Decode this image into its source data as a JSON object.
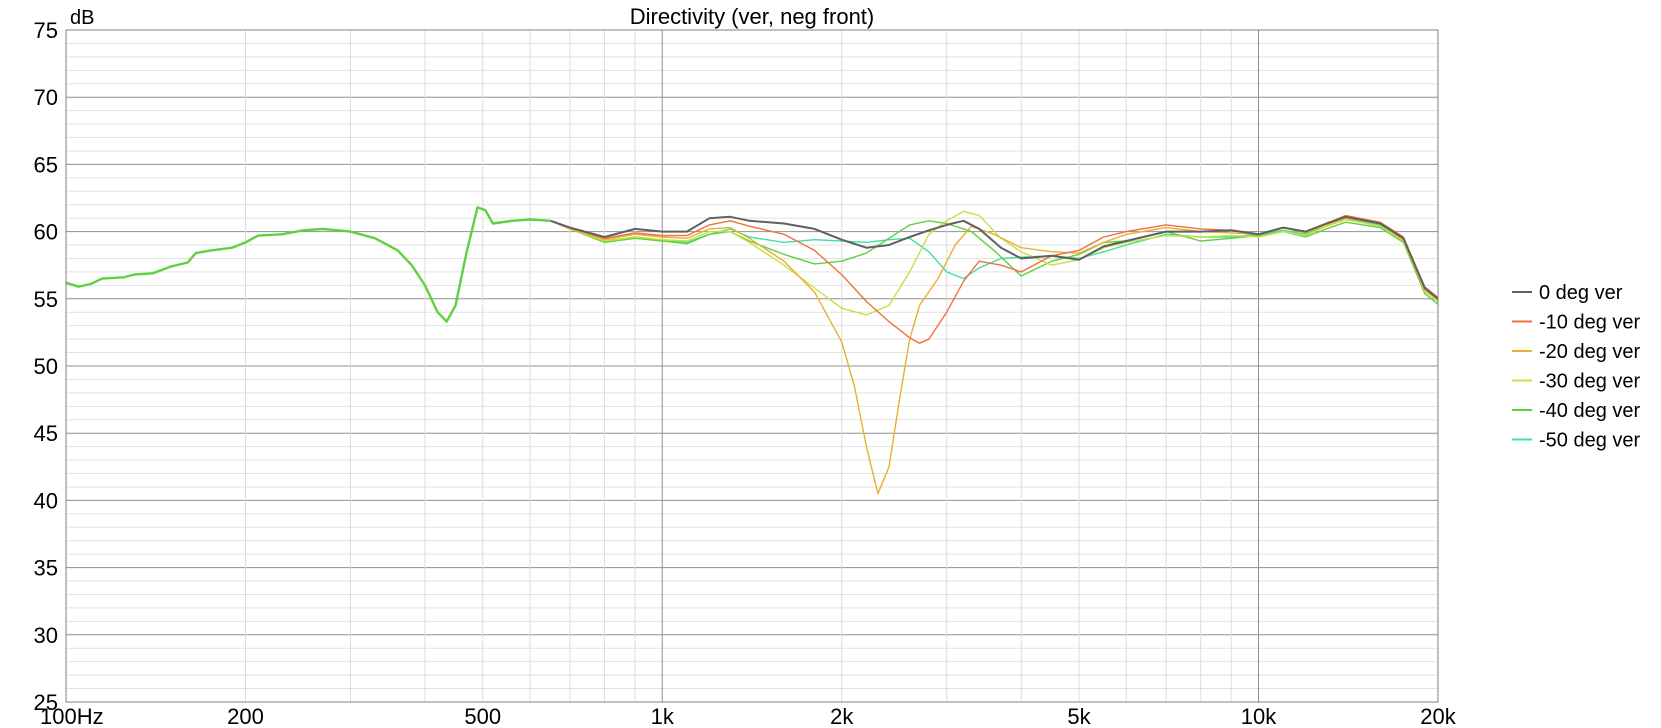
{
  "chart_data": {
    "type": "line",
    "title": "Directivity (ver, neg front)",
    "ylabel_unit": "dB",
    "xscale": "log",
    "xlim": [
      100,
      20000
    ],
    "ylim": [
      25,
      75
    ],
    "yticks": [
      {
        "value": 75,
        "label": "75"
      },
      {
        "value": 70,
        "label": "70"
      },
      {
        "value": 65,
        "label": "65"
      },
      {
        "value": 60,
        "label": "60"
      },
      {
        "value": 55,
        "label": "55"
      },
      {
        "value": 50,
        "label": "50"
      },
      {
        "value": 45,
        "label": "45"
      },
      {
        "value": 40,
        "label": "40"
      },
      {
        "value": 35,
        "label": "35"
      },
      {
        "value": 30,
        "label": "30"
      },
      {
        "value": 25,
        "label": "25"
      }
    ],
    "xticks": [
      {
        "value": 100,
        "label": "100Hz"
      },
      {
        "value": 200,
        "label": "200"
      },
      {
        "value": 500,
        "label": "500"
      },
      {
        "value": 1000,
        "label": "1k"
      },
      {
        "value": 2000,
        "label": "2k"
      },
      {
        "value": 5000,
        "label": "5k"
      },
      {
        "value": 10000,
        "label": "10k"
      },
      {
        "value": 20000,
        "label": "20k"
      }
    ],
    "grid": true,
    "legend_position": "right",
    "series": [
      {
        "name": "0 deg ver",
        "color": "#606060",
        "points": [
          [
            650,
            60.8
          ],
          [
            700,
            60.3
          ],
          [
            800,
            59.6
          ],
          [
            900,
            60.2
          ],
          [
            1000,
            60.0
          ],
          [
            1100,
            60.0
          ],
          [
            1200,
            61.0
          ],
          [
            1300,
            61.1
          ],
          [
            1400,
            60.8
          ],
          [
            1600,
            60.6
          ],
          [
            1800,
            60.2
          ],
          [
            2000,
            59.4
          ],
          [
            2200,
            58.8
          ],
          [
            2400,
            59.0
          ],
          [
            2600,
            59.6
          ],
          [
            2800,
            60.1
          ],
          [
            3000,
            60.5
          ],
          [
            3200,
            60.8
          ],
          [
            3400,
            60.2
          ],
          [
            3700,
            58.8
          ],
          [
            4000,
            58.0
          ],
          [
            4500,
            58.2
          ],
          [
            5000,
            57.9
          ],
          [
            5500,
            58.9
          ],
          [
            6000,
            59.3
          ],
          [
            7000,
            60.0
          ],
          [
            8000,
            60.0
          ],
          [
            9000,
            60.1
          ],
          [
            10000,
            59.8
          ],
          [
            11000,
            60.3
          ],
          [
            12000,
            60.0
          ],
          [
            13000,
            60.6
          ],
          [
            14000,
            61.1
          ],
          [
            16000,
            60.6
          ],
          [
            17500,
            59.5
          ],
          [
            19000,
            55.8
          ],
          [
            20000,
            55.0
          ]
        ]
      },
      {
        "name": "-10 deg ver",
        "color": "#f07040",
        "points": [
          [
            650,
            60.8
          ],
          [
            700,
            60.3
          ],
          [
            800,
            59.5
          ],
          [
            900,
            59.9
          ],
          [
            1000,
            59.7
          ],
          [
            1100,
            59.7
          ],
          [
            1200,
            60.5
          ],
          [
            1300,
            60.8
          ],
          [
            1400,
            60.4
          ],
          [
            1600,
            59.8
          ],
          [
            1800,
            58.6
          ],
          [
            2000,
            56.8
          ],
          [
            2200,
            54.8
          ],
          [
            2400,
            53.3
          ],
          [
            2600,
            52.1
          ],
          [
            2700,
            51.7
          ],
          [
            2800,
            52.0
          ],
          [
            3000,
            54.0
          ],
          [
            3200,
            56.3
          ],
          [
            3400,
            57.8
          ],
          [
            3700,
            57.5
          ],
          [
            4000,
            57.0
          ],
          [
            4500,
            58.2
          ],
          [
            5000,
            58.6
          ],
          [
            5500,
            59.6
          ],
          [
            6000,
            60.0
          ],
          [
            7000,
            60.5
          ],
          [
            8000,
            60.2
          ],
          [
            9000,
            60.1
          ],
          [
            10000,
            59.8
          ],
          [
            11000,
            60.3
          ],
          [
            12000,
            60.0
          ],
          [
            13000,
            60.6
          ],
          [
            14000,
            61.2
          ],
          [
            16000,
            60.7
          ],
          [
            17500,
            59.6
          ],
          [
            19000,
            55.9
          ],
          [
            20000,
            55.1
          ]
        ]
      },
      {
        "name": "-20 deg ver",
        "color": "#e8b030",
        "points": [
          [
            650,
            60.8
          ],
          [
            700,
            60.2
          ],
          [
            800,
            59.4
          ],
          [
            900,
            59.8
          ],
          [
            1000,
            59.6
          ],
          [
            1100,
            59.5
          ],
          [
            1200,
            60.2
          ],
          [
            1300,
            60.3
          ],
          [
            1400,
            59.5
          ],
          [
            1600,
            57.8
          ],
          [
            1800,
            55.5
          ],
          [
            2000,
            51.8
          ],
          [
            2100,
            48.5
          ],
          [
            2200,
            44.0
          ],
          [
            2300,
            40.5
          ],
          [
            2400,
            42.5
          ],
          [
            2500,
            47.5
          ],
          [
            2600,
            52.0
          ],
          [
            2700,
            54.5
          ],
          [
            2900,
            56.5
          ],
          [
            3100,
            59.0
          ],
          [
            3300,
            60.4
          ],
          [
            3600,
            59.8
          ],
          [
            4000,
            58.8
          ],
          [
            4500,
            58.5
          ],
          [
            5000,
            58.4
          ],
          [
            5500,
            59.2
          ],
          [
            6000,
            59.8
          ],
          [
            7000,
            60.3
          ],
          [
            8000,
            60.0
          ],
          [
            9000,
            59.9
          ],
          [
            10000,
            59.8
          ],
          [
            11000,
            60.3
          ],
          [
            12000,
            59.9
          ],
          [
            13000,
            60.5
          ],
          [
            14000,
            61.0
          ],
          [
            16000,
            60.6
          ],
          [
            17500,
            59.4
          ],
          [
            19000,
            55.7
          ],
          [
            20000,
            54.9
          ]
        ]
      },
      {
        "name": "-30 deg ver",
        "color": "#c8e040",
        "points": [
          [
            650,
            60.8
          ],
          [
            700,
            60.2
          ],
          [
            800,
            59.3
          ],
          [
            900,
            59.6
          ],
          [
            1000,
            59.4
          ],
          [
            1100,
            59.3
          ],
          [
            1200,
            60.0
          ],
          [
            1300,
            60.0
          ],
          [
            1400,
            59.2
          ],
          [
            1600,
            57.5
          ],
          [
            1800,
            55.8
          ],
          [
            2000,
            54.3
          ],
          [
            2200,
            53.8
          ],
          [
            2400,
            54.5
          ],
          [
            2600,
            57.0
          ],
          [
            2800,
            59.8
          ],
          [
            3000,
            60.8
          ],
          [
            3200,
            61.5
          ],
          [
            3400,
            61.2
          ],
          [
            3700,
            59.5
          ],
          [
            4000,
            58.5
          ],
          [
            4500,
            57.5
          ],
          [
            5000,
            57.9
          ],
          [
            5500,
            58.8
          ],
          [
            6000,
            59.2
          ],
          [
            7000,
            59.7
          ],
          [
            8000,
            59.6
          ],
          [
            9000,
            59.7
          ],
          [
            10000,
            59.6
          ],
          [
            11000,
            60.0
          ],
          [
            12000,
            59.7
          ],
          [
            13000,
            60.4
          ],
          [
            14000,
            60.9
          ],
          [
            16000,
            60.4
          ],
          [
            17500,
            59.3
          ],
          [
            19000,
            55.6
          ],
          [
            20000,
            54.8
          ]
        ]
      },
      {
        "name": "-40 deg ver",
        "color": "#60d040",
        "points": [
          [
            650,
            60.8
          ],
          [
            700,
            60.2
          ],
          [
            800,
            59.2
          ],
          [
            900,
            59.5
          ],
          [
            1000,
            59.3
          ],
          [
            1100,
            59.1
          ],
          [
            1200,
            59.8
          ],
          [
            1300,
            60.0
          ],
          [
            1400,
            59.3
          ],
          [
            1600,
            58.3
          ],
          [
            1800,
            57.6
          ],
          [
            2000,
            57.8
          ],
          [
            2200,
            58.4
          ],
          [
            2400,
            59.5
          ],
          [
            2600,
            60.5
          ],
          [
            2800,
            60.8
          ],
          [
            3000,
            60.6
          ],
          [
            3300,
            60.0
          ],
          [
            3600,
            58.6
          ],
          [
            4000,
            56.7
          ],
          [
            4500,
            57.8
          ],
          [
            5000,
            58.3
          ],
          [
            5500,
            59.2
          ],
          [
            6000,
            59.3
          ],
          [
            7000,
            60.0
          ],
          [
            8000,
            59.3
          ],
          [
            9000,
            59.5
          ],
          [
            10000,
            59.7
          ],
          [
            11000,
            60.0
          ],
          [
            12000,
            59.6
          ],
          [
            13000,
            60.2
          ],
          [
            14000,
            60.7
          ],
          [
            16000,
            60.3
          ],
          [
            17500,
            59.2
          ],
          [
            19000,
            55.4
          ],
          [
            20000,
            54.6
          ]
        ]
      },
      {
        "name": "-50 deg ver",
        "color": "#40e0a0",
        "points": [
          [
            650,
            60.8
          ],
          [
            700,
            60.2
          ],
          [
            800,
            59.3
          ],
          [
            900,
            59.6
          ],
          [
            1000,
            59.4
          ],
          [
            1100,
            59.2
          ],
          [
            1200,
            59.8
          ],
          [
            1300,
            60.2
          ],
          [
            1400,
            59.6
          ],
          [
            1600,
            59.2
          ],
          [
            1800,
            59.4
          ],
          [
            2000,
            59.3
          ],
          [
            2200,
            59.2
          ],
          [
            2400,
            59.4
          ],
          [
            2600,
            59.5
          ],
          [
            2800,
            58.5
          ],
          [
            3000,
            57.0
          ],
          [
            3200,
            56.5
          ],
          [
            3400,
            57.3
          ],
          [
            3700,
            58.0
          ],
          [
            4000,
            58.1
          ],
          [
            4500,
            58.2
          ],
          [
            5000,
            58.0
          ],
          [
            5500,
            58.5
          ],
          [
            6000,
            59.0
          ],
          [
            7000,
            59.8
          ],
          [
            8000,
            59.6
          ],
          [
            9000,
            59.6
          ],
          [
            10000,
            59.8
          ],
          [
            11000,
            60.1
          ],
          [
            12000,
            59.8
          ],
          [
            13000,
            60.4
          ],
          [
            14000,
            60.9
          ],
          [
            16000,
            60.5
          ],
          [
            17500,
            59.4
          ],
          [
            19000,
            55.6
          ],
          [
            20000,
            54.8
          ]
        ]
      }
    ],
    "shared_low_band": [
      [
        100,
        56.2
      ],
      [
        105,
        55.9
      ],
      [
        110,
        56.1
      ],
      [
        115,
        56.5
      ],
      [
        125,
        56.6
      ],
      [
        130,
        56.8
      ],
      [
        140,
        56.9
      ],
      [
        150,
        57.4
      ],
      [
        160,
        57.7
      ],
      [
        165,
        58.4
      ],
      [
        175,
        58.6
      ],
      [
        190,
        58.8
      ],
      [
        200,
        59.2
      ],
      [
        210,
        59.7
      ],
      [
        230,
        59.8
      ],
      [
        250,
        60.1
      ],
      [
        270,
        60.2
      ],
      [
        300,
        60.0
      ],
      [
        330,
        59.5
      ],
      [
        360,
        58.6
      ],
      [
        380,
        57.5
      ],
      [
        400,
        56.0
      ],
      [
        420,
        54.0
      ],
      [
        435,
        53.3
      ],
      [
        450,
        54.5
      ],
      [
        470,
        58.5
      ],
      [
        490,
        61.8
      ],
      [
        505,
        61.6
      ],
      [
        520,
        60.6
      ],
      [
        560,
        60.8
      ],
      [
        600,
        60.9
      ],
      [
        650,
        60.8
      ]
    ]
  }
}
